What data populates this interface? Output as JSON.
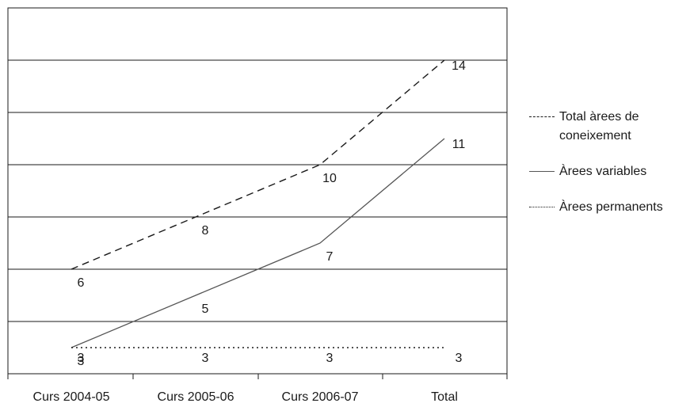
{
  "chart_data": {
    "type": "line",
    "title": "",
    "xlabel": "",
    "ylabel": "",
    "categories": [
      "Curs 2004-05",
      "Curs 2005-06",
      "Curs 2006-07",
      "Total"
    ],
    "ylim": [
      2,
      16
    ],
    "y_tick_step": 2,
    "y_tick_labels_shown": false,
    "grid": "horizontal",
    "legend_position": "right",
    "series": [
      {
        "name": "Total àrees de coneixement",
        "values": [
          6,
          8,
          10,
          14
        ],
        "style": "dashed",
        "color": "#1a1a1a"
      },
      {
        "name": "Àrees variables",
        "values": [
          3,
          5,
          7,
          11
        ],
        "style": "solid",
        "color": "#555555"
      },
      {
        "name": "Àrees permanents",
        "values": [
          3,
          3,
          3,
          3
        ],
        "style": "dotted",
        "color": "#1a1a1a"
      }
    ]
  }
}
